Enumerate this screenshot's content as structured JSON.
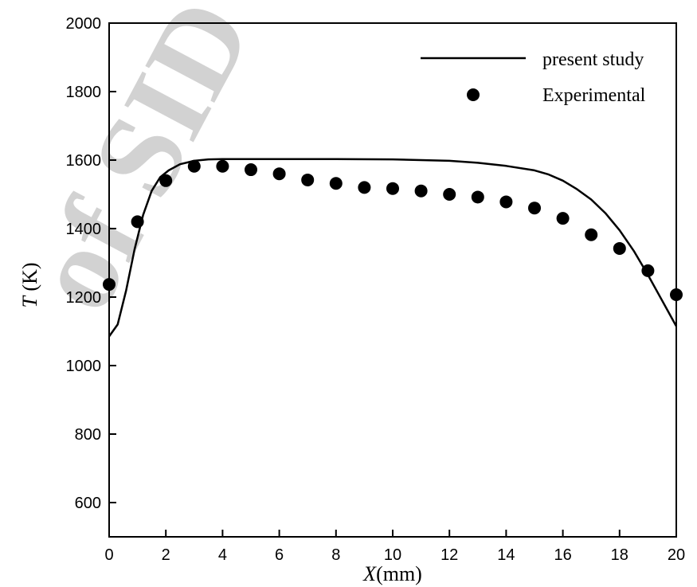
{
  "watermark": "of SID",
  "chart_data": {
    "type": "line",
    "xlabel_symbol": "X",
    "xlabel_unit": "(mm)",
    "ylabel_symbol": "T",
    "ylabel_unit": "(K)",
    "xlim": [
      0,
      20
    ],
    "ylim": [
      500,
      2000
    ],
    "xticks": [
      0,
      2,
      4,
      6,
      8,
      10,
      12,
      14,
      16,
      18,
      20
    ],
    "yticks": [
      600,
      800,
      1000,
      1200,
      1400,
      1600,
      1800,
      2000
    ],
    "grid": false,
    "legend_position": "top-right",
    "series": [
      {
        "name": "present study",
        "style": "line",
        "color": "#000000",
        "x": [
          0,
          0.3,
          0.6,
          0.9,
          1.2,
          1.5,
          1.8,
          2.1,
          2.5,
          3,
          3.5,
          4,
          6,
          8,
          10,
          12,
          13,
          14,
          15,
          15.5,
          16,
          16.5,
          17,
          17.5,
          18,
          18.5,
          19,
          19.5,
          20
        ],
        "y": [
          1085,
          1120,
          1220,
          1340,
          1440,
          1510,
          1550,
          1570,
          1588,
          1598,
          1602,
          1603,
          1603,
          1603,
          1602,
          1598,
          1592,
          1583,
          1570,
          1558,
          1540,
          1515,
          1485,
          1445,
          1395,
          1335,
          1265,
          1190,
          1115
        ]
      },
      {
        "name": "Experimental",
        "style": "markers",
        "color": "#000000",
        "x": [
          0,
          1,
          2,
          3,
          4,
          5,
          6,
          7,
          8,
          9,
          10,
          11,
          12,
          13,
          14,
          15,
          16,
          17,
          18,
          19,
          20
        ],
        "y": [
          1237,
          1420,
          1540,
          1582,
          1582,
          1572,
          1560,
          1542,
          1532,
          1520,
          1517,
          1510,
          1500,
          1492,
          1478,
          1460,
          1430,
          1382,
          1342,
          1277,
          1207
        ]
      }
    ]
  }
}
